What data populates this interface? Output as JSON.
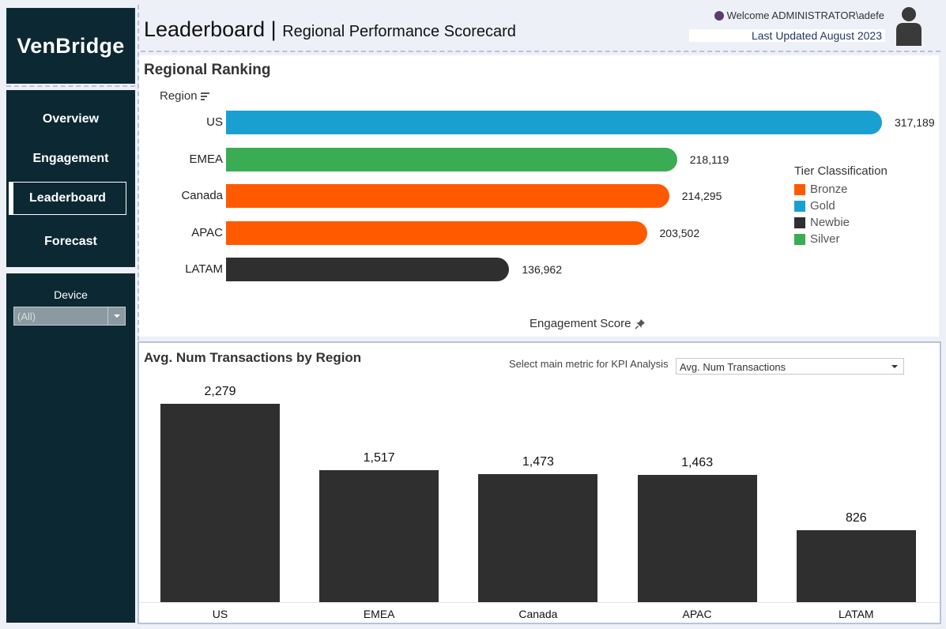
{
  "brand": {
    "name": "VenBridge"
  },
  "nav": {
    "items": [
      {
        "label": "Overview",
        "active": false
      },
      {
        "label": "Engagement",
        "active": false
      },
      {
        "label": "Leaderboard",
        "active": true
      },
      {
        "label": "Forecast",
        "active": false
      }
    ]
  },
  "filters": {
    "device_label": "Device",
    "device_value": "(All)"
  },
  "header": {
    "title": "Leaderboard",
    "separator": "|",
    "subtitle": "Regional Performance Scorecard",
    "welcome": "Welcome ADMINISTRATOR\\adefe",
    "last_updated": "Last Updated August 2023",
    "avatar_icon": "user-icon"
  },
  "colors": {
    "sidebar": "#0b2833",
    "bronze": "#ff5a00",
    "gold": "#1aa0d0",
    "newbie": "#2f2f2f",
    "silver": "#3aac54"
  },
  "chart_data": [
    {
      "type": "bar",
      "orientation": "horizontal",
      "title": "Regional Ranking",
      "category_header": "Region",
      "xlabel": "Engagement Score",
      "categories": [
        "US",
        "EMEA",
        "Canada",
        "APAC",
        "LATAM"
      ],
      "values": [
        317189,
        218119,
        214295,
        203502,
        136962
      ],
      "value_labels": [
        "317,189",
        "218,119",
        "214,295",
        "203,502",
        "136,962"
      ],
      "tiers": [
        "Gold",
        "Silver",
        "Bronze",
        "Bronze",
        "Newbie"
      ],
      "xlim": [
        0,
        317189
      ],
      "legend": {
        "title": "Tier Classification",
        "placement": "right",
        "entries": [
          {
            "label": "Bronze",
            "color": "#ff5a00"
          },
          {
            "label": "Gold",
            "color": "#1aa0d0"
          },
          {
            "label": "Newbie",
            "color": "#2f2f2f"
          },
          {
            "label": "Silver",
            "color": "#3aac54"
          }
        ]
      }
    },
    {
      "type": "bar",
      "orientation": "vertical",
      "title": "Avg. Num Transactions by Region",
      "categories": [
        "US",
        "EMEA",
        "Canada",
        "APAC",
        "LATAM"
      ],
      "values": [
        2279,
        1517,
        1473,
        1463,
        826
      ],
      "value_labels": [
        "2,279",
        "1,517",
        "1,473",
        "1,463",
        "826"
      ],
      "ylim": [
        0,
        2279
      ],
      "color": "#2f2f2f"
    }
  ],
  "kpi": {
    "label": "Select main metric for KPI Analysis",
    "value": "Avg. Num Transactions"
  }
}
